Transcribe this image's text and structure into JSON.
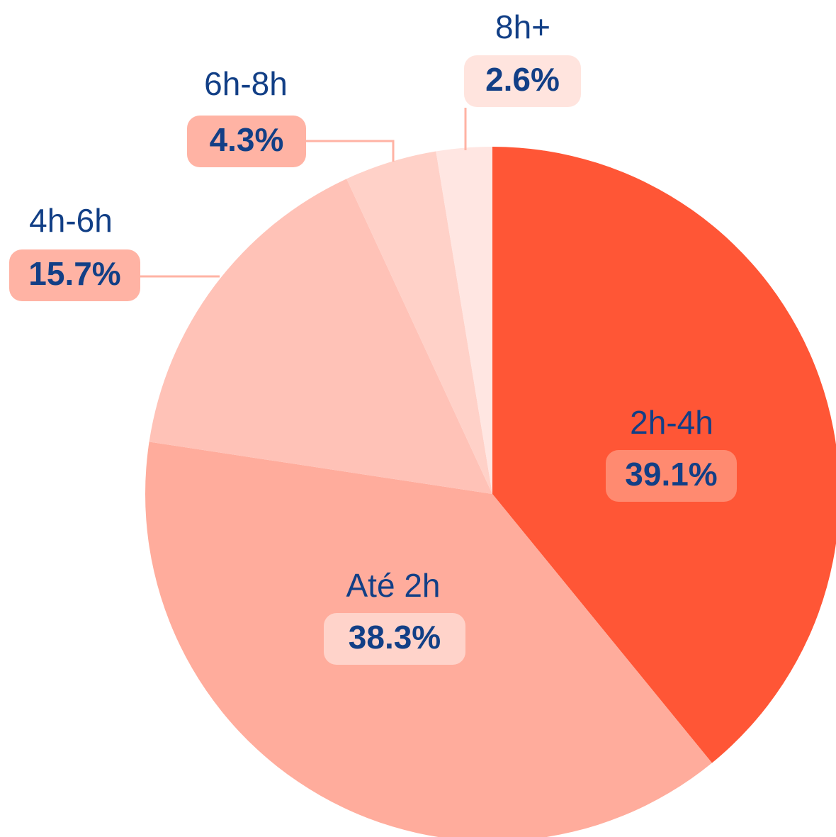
{
  "chart_data": {
    "type": "pie",
    "categories": [
      "2h-4h",
      "Até 2h",
      "4h-6h",
      "6h-8h",
      "8h+"
    ],
    "values": [
      39.1,
      38.3,
      15.7,
      4.3,
      2.6
    ],
    "value_labels": [
      "39.1%",
      "38.3%",
      "15.7%",
      "4.3%",
      "2.6%"
    ],
    "colors": [
      "#ff5636",
      "#ffac9c",
      "#ffc2b7",
      "#ffd1c8",
      "#ffe6e2"
    ]
  }
}
